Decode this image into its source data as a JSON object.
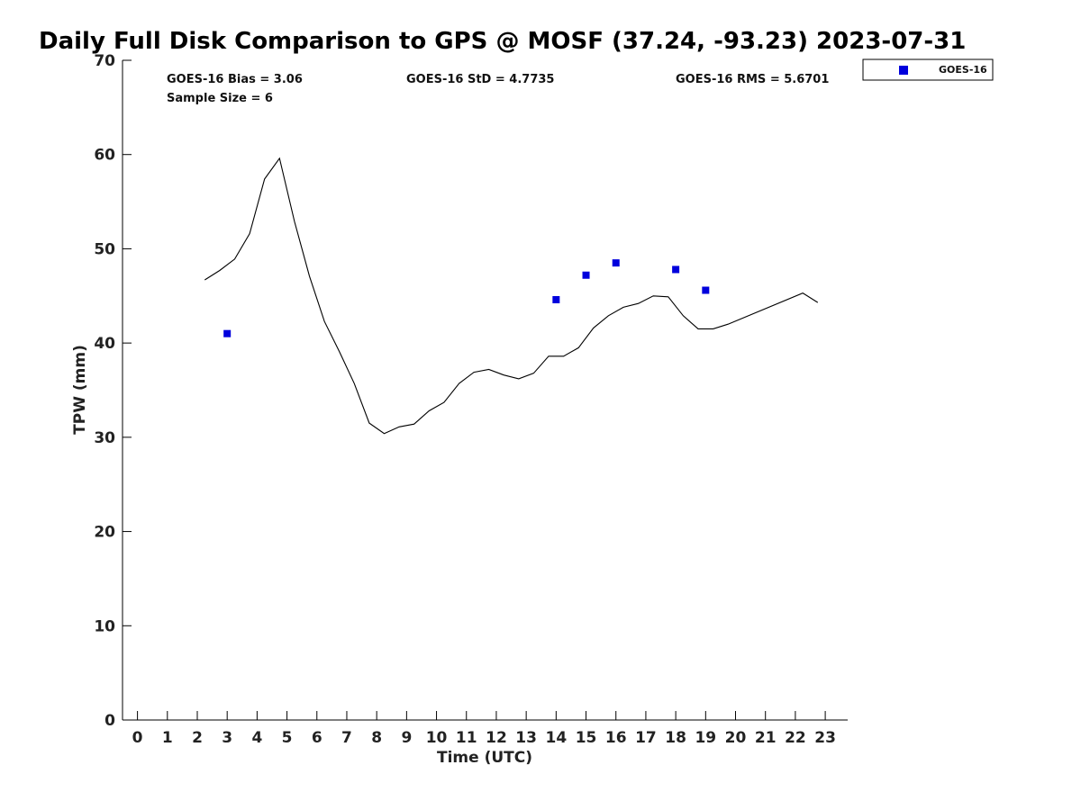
{
  "chart_data": {
    "type": "scatter",
    "title": "Daily Full Disk Comparison to GPS @ MOSF (37.24, -93.23) 2023-07-31",
    "xlabel": "Time (UTC)",
    "ylabel": "TPW (mm)",
    "xlim": [
      -0.5,
      23.75
    ],
    "ylim": [
      0,
      70
    ],
    "x_ticks": [
      0,
      1,
      2,
      3,
      4,
      5,
      6,
      7,
      8,
      9,
      10,
      11,
      12,
      13,
      14,
      15,
      16,
      17,
      18,
      19,
      20,
      21,
      22,
      23
    ],
    "y_ticks": [
      0,
      10,
      20,
      30,
      40,
      50,
      60,
      70
    ],
    "grid": false,
    "legend": {
      "position": "top-right",
      "entries": [
        "GOES-16"
      ]
    },
    "stats": {
      "bias": "GOES-16 Bias = 3.06",
      "std": "GOES-16 StD = 4.7735",
      "rms": "GOES-16 RMS = 5.6701",
      "sample": "Sample Size = 6"
    },
    "series": [
      {
        "name": "GPS",
        "kind": "line",
        "color": "#000000",
        "x": [
          2.25,
          2.75,
          3.25,
          3.75,
          4.25,
          4.75,
          5.25,
          5.75,
          6.25,
          6.75,
          7.25,
          7.75,
          8.25,
          8.75,
          9.25,
          9.75,
          10.25,
          10.75,
          11.25,
          11.75,
          12.25,
          12.75,
          13.25,
          13.75,
          14.25,
          14.75,
          15.25,
          15.75,
          16.25,
          16.75,
          17.25,
          17.75,
          18.25,
          18.75,
          19.25,
          19.75,
          22.25,
          22.75
        ],
        "values": [
          46.7,
          47.7,
          48.9,
          51.6,
          57.4,
          59.6,
          52.9,
          47.1,
          42.3,
          39.1,
          35.7,
          31.5,
          30.4,
          31.1,
          31.4,
          32.8,
          33.7,
          35.7,
          36.9,
          37.2,
          36.6,
          36.2,
          36.8,
          38.6,
          38.6,
          39.5,
          41.6,
          42.9,
          43.8,
          44.2,
          45.0,
          44.9,
          42.9,
          41.5,
          41.5,
          42.0,
          45.3,
          44.3
        ]
      },
      {
        "name": "GOES-16",
        "kind": "scatter",
        "color": "#0000dd",
        "x": [
          3,
          14,
          15,
          16,
          18,
          19
        ],
        "values": [
          41.0,
          44.6,
          47.2,
          48.5,
          47.8,
          45.6
        ]
      }
    ]
  }
}
